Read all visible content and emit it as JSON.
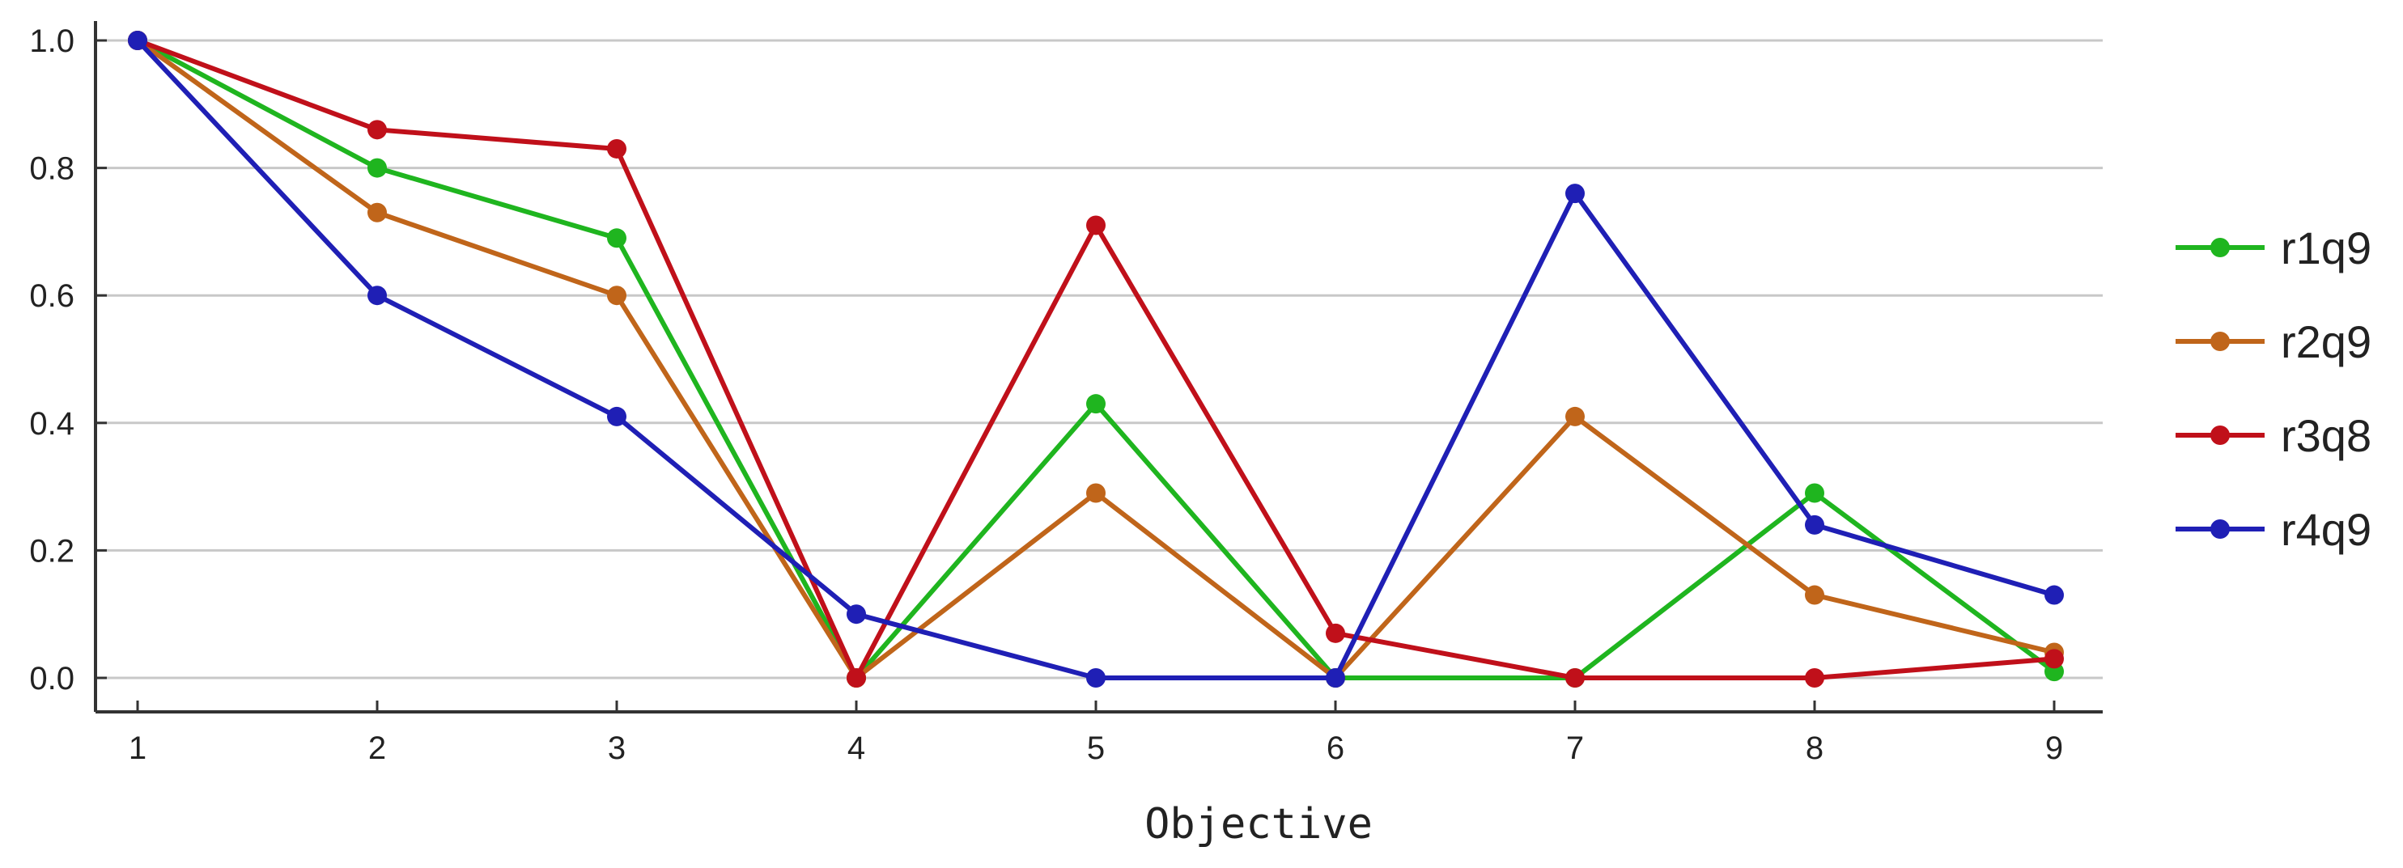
{
  "chart_data": {
    "type": "line",
    "title": "",
    "xlabel": "Objective",
    "ylabel": "",
    "x": [
      1,
      2,
      3,
      4,
      5,
      6,
      7,
      8,
      9
    ],
    "x_tick_labels": [
      "1",
      "2",
      "3",
      "4",
      "5",
      "6",
      "7",
      "8",
      "9"
    ],
    "y_tick_values": [
      0.0,
      0.2,
      0.4,
      0.6,
      0.8,
      1.0
    ],
    "y_tick_labels": [
      "0.0",
      "0.2",
      "0.4",
      "0.6",
      "0.8",
      "1.0"
    ],
    "xlim": [
      0.8,
      9.2
    ],
    "ylim": [
      -0.05,
      1.0
    ],
    "grid": "horizontal",
    "legend_position": "right",
    "series": [
      {
        "name": "r1q9",
        "color": "#1fb51f",
        "values": [
          1.0,
          0.8,
          0.69,
          0.0,
          0.43,
          0.0,
          0.0,
          0.29,
          0.01
        ]
      },
      {
        "name": "r2q9",
        "color": "#c0651a",
        "values": [
          1.0,
          0.73,
          0.6,
          0.0,
          0.29,
          0.0,
          0.41,
          0.13,
          0.04
        ]
      },
      {
        "name": "r3q8",
        "color": "#c0101a",
        "values": [
          1.0,
          0.86,
          0.83,
          0.0,
          0.71,
          0.07,
          0.0,
          0.0,
          0.03
        ]
      },
      {
        "name": "r4q9",
        "color": "#1f1fb5",
        "values": [
          1.0,
          0.6,
          0.41,
          0.1,
          0.0,
          0.0,
          0.76,
          0.24,
          0.13
        ]
      }
    ]
  }
}
